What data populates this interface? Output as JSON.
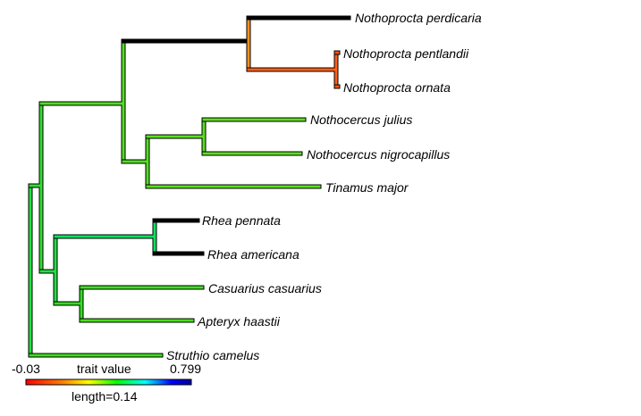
{
  "tree": {
    "tips": [
      {
        "key": "perdicaria",
        "label": "Nothoprocta perdicaria"
      },
      {
        "key": "pentlandii",
        "label": "Nothoprocta pentlandii"
      },
      {
        "key": "ornata",
        "label": "Nothoprocta ornata"
      },
      {
        "key": "julius",
        "label": "Nothocercus julius"
      },
      {
        "key": "nigrocapillus",
        "label": "Nothocercus nigrocapillus"
      },
      {
        "key": "tinamus",
        "label": "Tinamus major"
      },
      {
        "key": "pennata",
        "label": "Rhea pennata"
      },
      {
        "key": "americana",
        "label": "Rhea americana"
      },
      {
        "key": "casuarius",
        "label": "Casuarius casuarius"
      },
      {
        "key": "apteryx",
        "label": "Apteryx haastii"
      },
      {
        "key": "struthio",
        "label": "Struthio camelus"
      }
    ]
  },
  "legend": {
    "min_label": "-0.03",
    "title": "trait value",
    "max_label": "0.799",
    "scale_label": "length=0.14",
    "gradient_colors": [
      "#ff0000",
      "#ff8000",
      "#ffff00",
      "#00ff00",
      "#00ffff",
      "#0000ff",
      "#0000a0"
    ]
  }
}
